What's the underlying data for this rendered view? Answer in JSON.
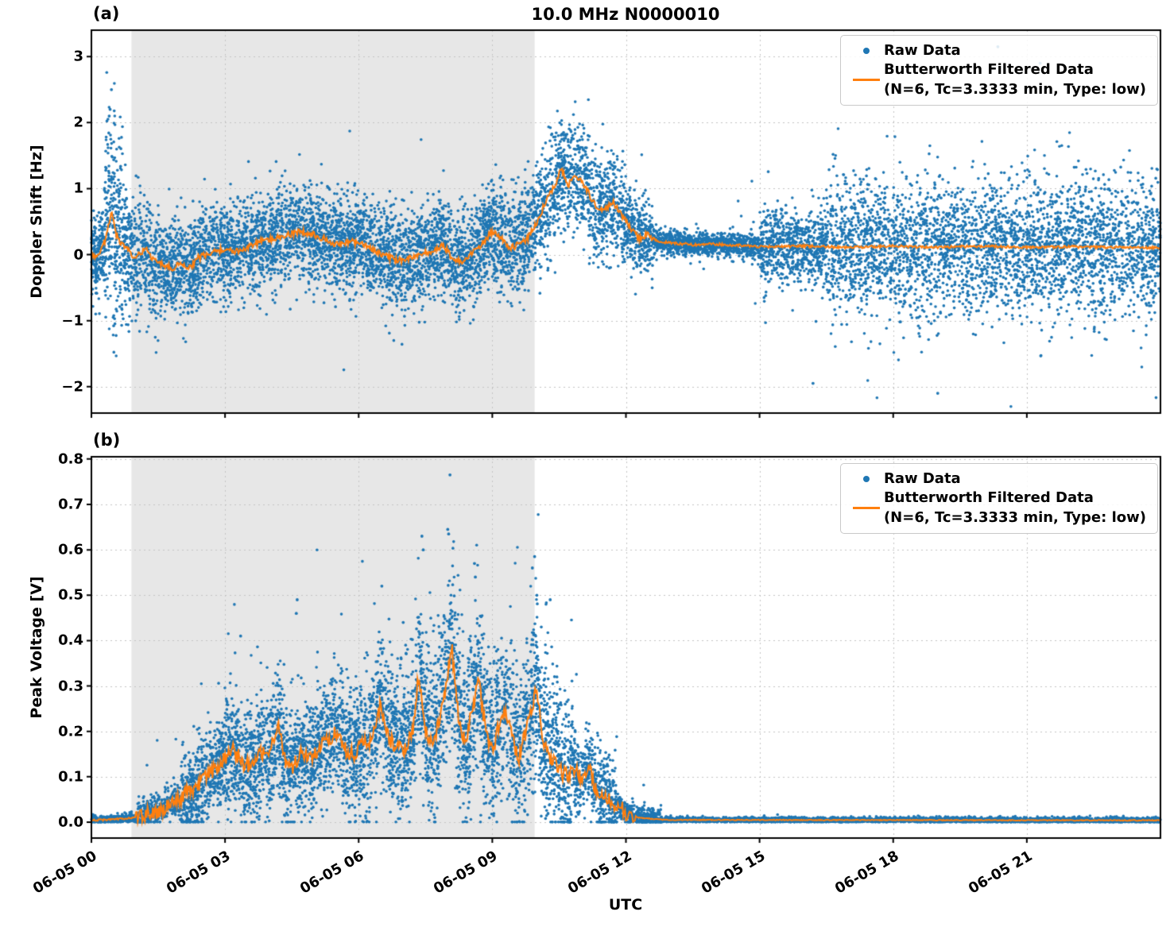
{
  "title": "10.0 MHz N0000010",
  "xlabel": "UTC",
  "panels": {
    "a": {
      "label": "(a)",
      "ylabel": "Doppler Shift [Hz]"
    },
    "b": {
      "label": "(b)",
      "ylabel": "Peak Voltage [V]"
    }
  },
  "legend": {
    "raw_label": "Raw Data",
    "filtered_label_line1": "Butterworth Filtered Data",
    "filtered_label_line2": "(N=6, Tc=3.3333 min, Type: low)"
  },
  "colors": {
    "raw": "#1f77b4",
    "filtered": "#ff7f0e",
    "shade": "#e7e7e7",
    "grid": "#c4c4c4",
    "axis": "#000000",
    "background": "#ffffff"
  },
  "x_axis": {
    "tick_labels": [
      "06-05 00",
      "06-05 03",
      "06-05 06",
      "06-05 09",
      "06-05 12",
      "06-05 15",
      "06-05 18",
      "06-05 21"
    ],
    "tick_hours": [
      0,
      3,
      6,
      9,
      12,
      15,
      18,
      21
    ],
    "range_hours": [
      0,
      24
    ]
  },
  "shade_region_hours": [
    0.9,
    9.95
  ],
  "chart_data": [
    {
      "panel": "a",
      "type": "scatter",
      "title": "10.0 MHz N0000010",
      "ylabel": "Doppler Shift [Hz]",
      "ylim": [
        -2.4,
        3.4
      ],
      "clamp": [
        -2.3,
        3.3
      ],
      "yticks": [
        -2,
        -1,
        0,
        1,
        2,
        3
      ],
      "ytick_labels": [
        "−2",
        "−1",
        "0",
        "1",
        "2",
        "3"
      ],
      "series": [
        {
          "name": "Raw Data",
          "kind": "scatter",
          "color": "#1f77b4",
          "envelope_segments": [
            [
              0.0,
              0.3,
              0.3,
              200,
              0.01,
              0.8
            ],
            [
              0.3,
              0.7,
              0.75,
              260,
              0.04,
              1.0
            ],
            [
              0.7,
              1.5,
              0.45,
              420,
              0.02,
              0.7
            ],
            [
              1.5,
              3.0,
              0.36,
              800,
              0.015,
              0.6
            ],
            [
              3.0,
              6.0,
              0.36,
              1600,
              0.015,
              0.6
            ],
            [
              6.0,
              9.0,
              0.36,
              1600,
              0.015,
              0.6
            ],
            [
              9.0,
              10.0,
              0.4,
              520,
              0.015,
              0.6
            ],
            [
              10.0,
              12.0,
              0.4,
              1000,
              0.015,
              0.6
            ],
            [
              12.0,
              12.6,
              0.28,
              300,
              0.01,
              0.5
            ],
            [
              12.6,
              15.0,
              0.09,
              1100,
              0.012,
              0.7
            ],
            [
              15.0,
              16.5,
              0.28,
              700,
              0.03,
              0.8
            ],
            [
              16.5,
              24.0,
              0.5,
              3400,
              0.05,
              0.9
            ]
          ],
          "extra_points": [
            [
              0.45,
              2.5
            ],
            [
              0.42,
              2.2
            ],
            [
              0.4,
              2.1
            ],
            [
              20.35,
              3.15
            ],
            [
              21.3,
              2.9
            ],
            [
              10.6,
              1.85
            ],
            [
              10.65,
              1.8
            ],
            [
              19.0,
              -2.1
            ],
            [
              16.2,
              -1.95
            ]
          ]
        },
        {
          "name": "Butterworth Filtered Data",
          "kind": "line",
          "color": "#ff7f0e",
          "noise": [
            [
              0,
              12.6,
              0.05
            ],
            [
              12.6,
              24,
              0.02
            ]
          ],
          "keypoints": [
            [
              0,
              0.0
            ],
            [
              0.15,
              -0.05
            ],
            [
              0.3,
              0.2
            ],
            [
              0.45,
              0.65
            ],
            [
              0.55,
              0.3
            ],
            [
              0.7,
              0.15
            ],
            [
              0.85,
              0.05
            ],
            [
              1.0,
              -0.05
            ],
            [
              1.2,
              0.1
            ],
            [
              1.4,
              -0.1
            ],
            [
              1.6,
              -0.15
            ],
            [
              1.8,
              -0.2
            ],
            [
              2.0,
              -0.15
            ],
            [
              2.2,
              -0.2
            ],
            [
              2.4,
              -0.05
            ],
            [
              2.6,
              0.0
            ],
            [
              2.8,
              0.05
            ],
            [
              3.0,
              0.1
            ],
            [
              3.2,
              0.05
            ],
            [
              3.5,
              0.1
            ],
            [
              3.8,
              0.2
            ],
            [
              4.1,
              0.25
            ],
            [
              4.4,
              0.3
            ],
            [
              4.7,
              0.35
            ],
            [
              5.0,
              0.3
            ],
            [
              5.2,
              0.25
            ],
            [
              5.5,
              0.15
            ],
            [
              5.8,
              0.2
            ],
            [
              6.1,
              0.15
            ],
            [
              6.4,
              0.05
            ],
            [
              6.7,
              -0.05
            ],
            [
              7.0,
              -0.1
            ],
            [
              7.3,
              0.0
            ],
            [
              7.6,
              0.05
            ],
            [
              7.9,
              0.15
            ],
            [
              8.1,
              -0.05
            ],
            [
              8.3,
              -0.1
            ],
            [
              8.5,
              0.0
            ],
            [
              8.7,
              0.1
            ],
            [
              9.0,
              0.35
            ],
            [
              9.2,
              0.25
            ],
            [
              9.4,
              0.1
            ],
            [
              9.6,
              0.15
            ],
            [
              9.8,
              0.25
            ],
            [
              10.0,
              0.5
            ],
            [
              10.2,
              0.8
            ],
            [
              10.4,
              1.05
            ],
            [
              10.55,
              1.3
            ],
            [
              10.7,
              1.05
            ],
            [
              10.85,
              1.2
            ],
            [
              11.0,
              1.1
            ],
            [
              11.15,
              0.95
            ],
            [
              11.3,
              0.75
            ],
            [
              11.5,
              0.65
            ],
            [
              11.7,
              0.8
            ],
            [
              11.9,
              0.6
            ],
            [
              12.1,
              0.4
            ],
            [
              12.3,
              0.25
            ],
            [
              12.5,
              0.3
            ],
            [
              12.7,
              0.2
            ],
            [
              13.0,
              0.18
            ],
            [
              13.5,
              0.15
            ],
            [
              14.0,
              0.16
            ],
            [
              15.0,
              0.12
            ],
            [
              16.0,
              0.13
            ],
            [
              17.0,
              0.11
            ],
            [
              18.0,
              0.13
            ],
            [
              19.0,
              0.11
            ],
            [
              20.0,
              0.13
            ],
            [
              21.0,
              0.11
            ],
            [
              22.0,
              0.12
            ],
            [
              23.0,
              0.11
            ],
            [
              24.0,
              0.1
            ]
          ]
        }
      ]
    },
    {
      "panel": "b",
      "type": "scatter",
      "xlabel": "UTC",
      "ylabel": "Peak Voltage [V]",
      "ylim": [
        -0.035,
        0.805
      ],
      "clamp": [
        0.0005,
        0.775
      ],
      "yticks": [
        0.0,
        0.1,
        0.2,
        0.3,
        0.4,
        0.5,
        0.6,
        0.7,
        0.8
      ],
      "ytick_labels": [
        "0.0",
        "0.1",
        "0.2",
        "0.3",
        "0.4",
        "0.5",
        "0.6",
        "0.7",
        "0.8"
      ],
      "series": [
        {
          "name": "Raw Data",
          "kind": "scatter",
          "color": "#1f77b4",
          "envelope_segments": [
            [
              0.0,
              1.0,
              0.005,
              320,
              0.0,
              0.0
            ],
            [
              1.0,
              2.0,
              0.018,
              380,
              0.01,
              0.08
            ],
            [
              2.0,
              3.0,
              0.05,
              550,
              0.02,
              0.12
            ],
            [
              3.0,
              4.5,
              0.065,
              850,
              0.02,
              0.16
            ],
            [
              4.5,
              6.0,
              0.065,
              850,
              0.02,
              0.16
            ],
            [
              6.0,
              7.5,
              0.075,
              850,
              0.03,
              0.2
            ],
            [
              7.5,
              8.5,
              0.1,
              600,
              0.04,
              0.22
            ],
            [
              8.5,
              10.0,
              0.085,
              850,
              0.03,
              0.2
            ],
            [
              10.0,
              10.8,
              0.085,
              450,
              0.03,
              0.18
            ],
            [
              10.8,
              11.8,
              0.045,
              480,
              0.02,
              0.1
            ],
            [
              11.8,
              12.8,
              0.012,
              420,
              0.01,
              0.04
            ],
            [
              12.8,
              24.0,
              0.003,
              3600,
              0.0,
              0.0
            ]
          ],
          "extra_points": [
            [
              8.05,
              0.765
            ],
            [
              8.0,
              0.645
            ],
            [
              8.02,
              0.635
            ],
            [
              7.42,
              0.63
            ],
            [
              7.45,
              0.6
            ],
            [
              9.95,
              0.585
            ],
            [
              9.9,
              0.56
            ],
            [
              8.6,
              0.57
            ],
            [
              8.62,
              0.54
            ],
            [
              6.52,
              0.52
            ],
            [
              10.0,
              0.5
            ],
            [
              10.3,
              0.49
            ],
            [
              4.62,
              0.49
            ],
            [
              4.6,
              0.46
            ],
            [
              7.0,
              0.44
            ],
            [
              3.35,
              0.41
            ]
          ]
        },
        {
          "name": "Butterworth Filtered Data",
          "kind": "line",
          "color": "#ff7f0e",
          "noise": [
            [
              0,
              1,
              0.002
            ],
            [
              1,
              12.2,
              0.018
            ],
            [
              12.2,
              24,
              0.001
            ]
          ],
          "keypoints": [
            [
              0,
              0.004
            ],
            [
              0.5,
              0.006
            ],
            [
              1.0,
              0.01
            ],
            [
              1.5,
              0.025
            ],
            [
              2.0,
              0.055
            ],
            [
              2.4,
              0.08
            ],
            [
              2.7,
              0.11
            ],
            [
              3.0,
              0.14
            ],
            [
              3.2,
              0.16
            ],
            [
              3.4,
              0.13
            ],
            [
              3.6,
              0.12
            ],
            [
              3.8,
              0.15
            ],
            [
              4.0,
              0.16
            ],
            [
              4.2,
              0.21
            ],
            [
              4.35,
              0.13
            ],
            [
              4.5,
              0.12
            ],
            [
              4.7,
              0.15
            ],
            [
              4.9,
              0.14
            ],
            [
              5.1,
              0.16
            ],
            [
              5.3,
              0.18
            ],
            [
              5.5,
              0.2
            ],
            [
              5.7,
              0.16
            ],
            [
              5.9,
              0.15
            ],
            [
              6.1,
              0.17
            ],
            [
              6.3,
              0.18
            ],
            [
              6.5,
              0.26
            ],
            [
              6.65,
              0.19
            ],
            [
              6.8,
              0.17
            ],
            [
              7.0,
              0.16
            ],
            [
              7.2,
              0.19
            ],
            [
              7.35,
              0.33
            ],
            [
              7.5,
              0.2
            ],
            [
              7.65,
              0.17
            ],
            [
              7.8,
              0.22
            ],
            [
              7.95,
              0.3
            ],
            [
              8.1,
              0.375
            ],
            [
              8.25,
              0.22
            ],
            [
              8.4,
              0.17
            ],
            [
              8.55,
              0.25
            ],
            [
              8.7,
              0.31
            ],
            [
              8.85,
              0.2
            ],
            [
              9.0,
              0.16
            ],
            [
              9.15,
              0.21
            ],
            [
              9.3,
              0.25
            ],
            [
              9.45,
              0.18
            ],
            [
              9.6,
              0.14
            ],
            [
              9.75,
              0.2
            ],
            [
              9.9,
              0.26
            ],
            [
              10.0,
              0.3
            ],
            [
              10.1,
              0.2
            ],
            [
              10.25,
              0.15
            ],
            [
              10.4,
              0.13
            ],
            [
              10.55,
              0.11
            ],
            [
              10.7,
              0.1
            ],
            [
              10.85,
              0.12
            ],
            [
              11.0,
              0.09
            ],
            [
              11.15,
              0.13
            ],
            [
              11.3,
              0.08
            ],
            [
              11.45,
              0.06
            ],
            [
              11.6,
              0.05
            ],
            [
              11.8,
              0.04
            ],
            [
              12.0,
              0.02
            ],
            [
              12.3,
              0.01
            ],
            [
              12.7,
              0.006
            ],
            [
              13.0,
              0.005
            ],
            [
              24,
              0.004
            ]
          ]
        }
      ]
    }
  ]
}
